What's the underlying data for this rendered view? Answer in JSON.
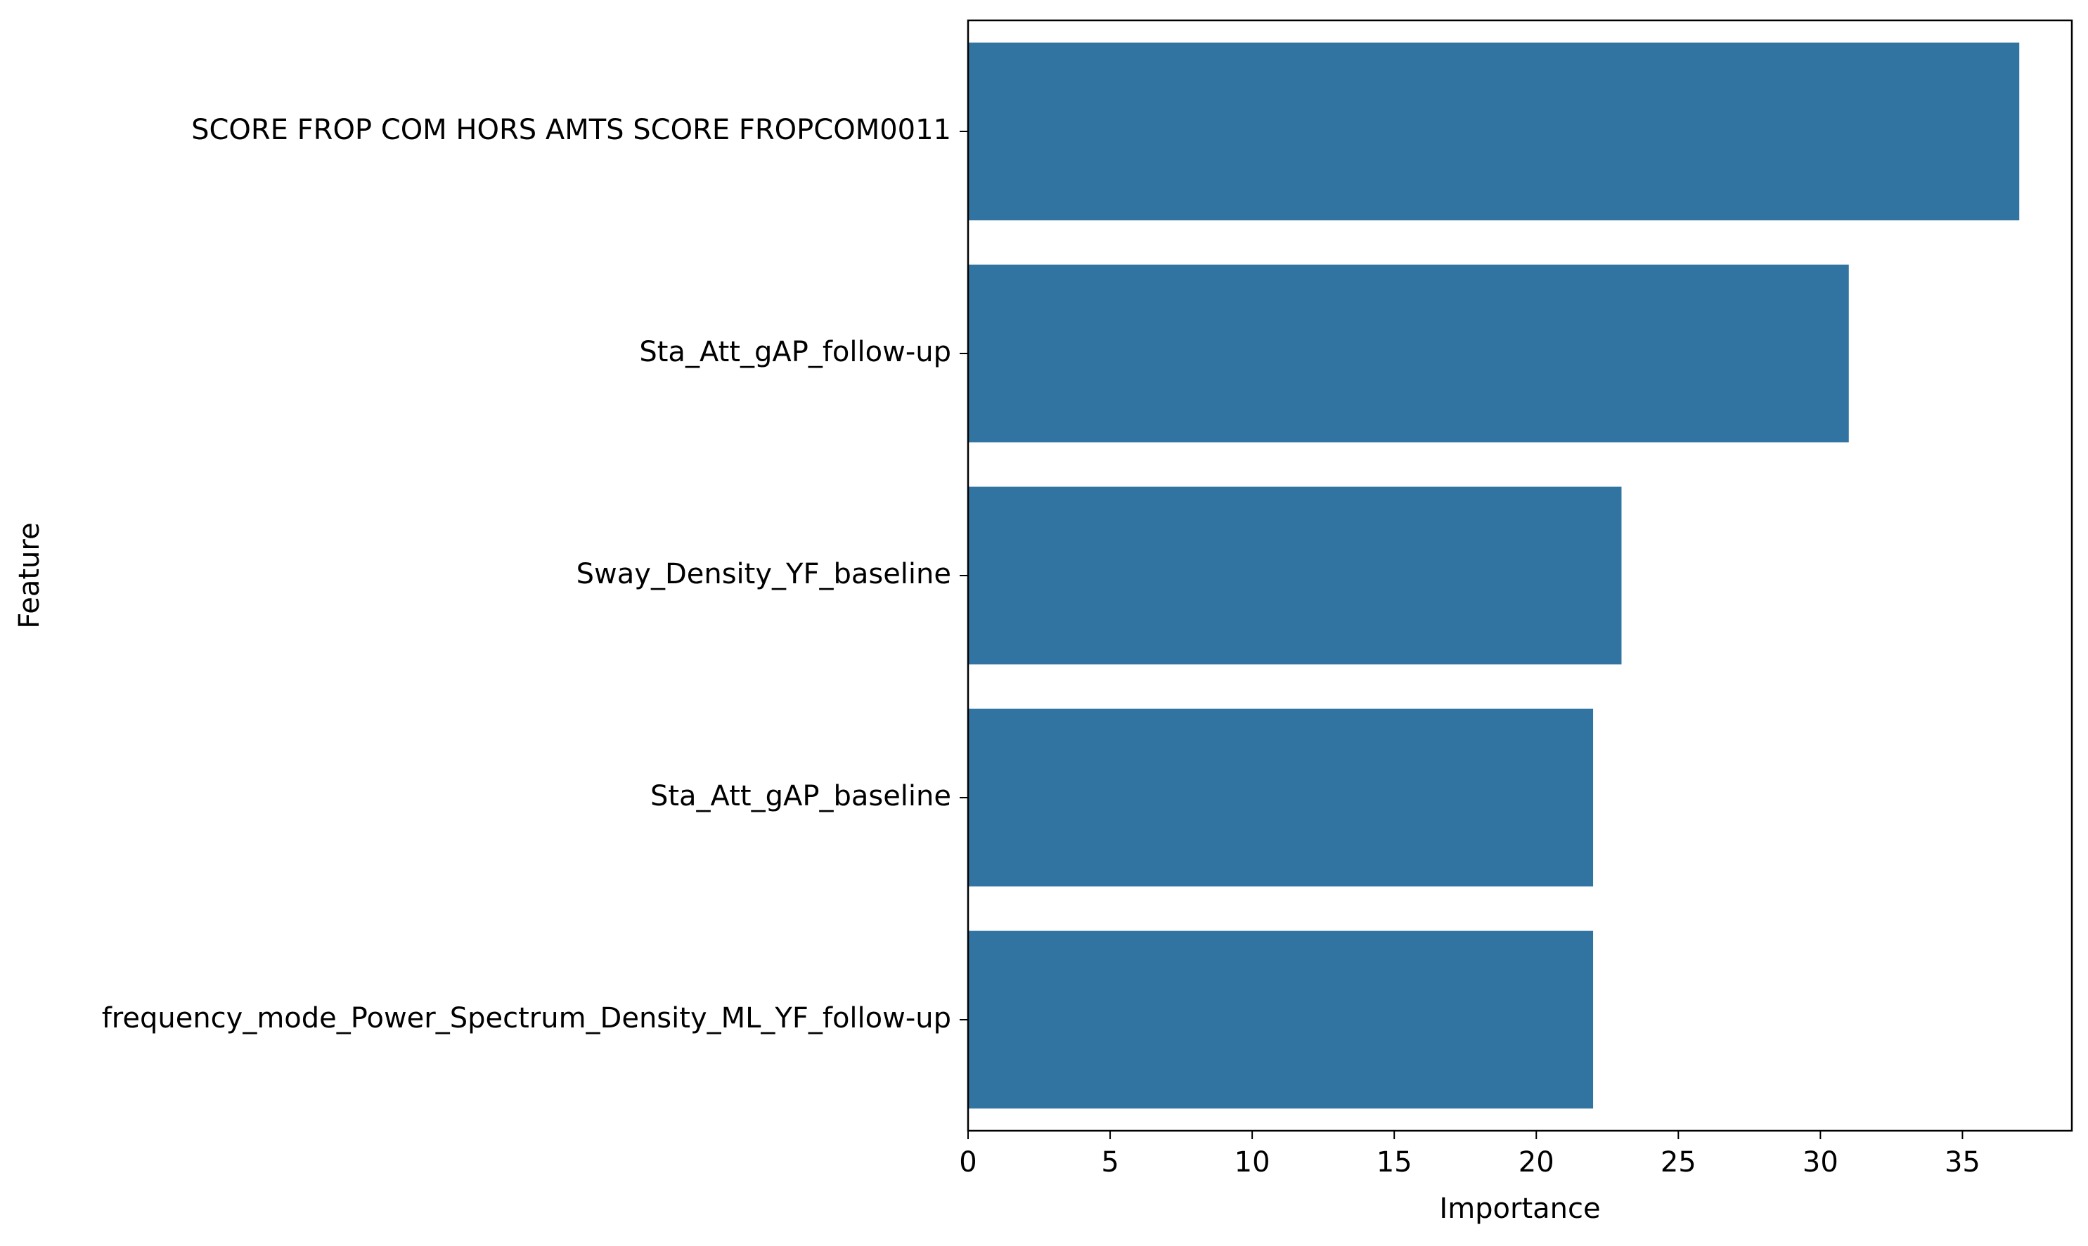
{
  "chart_data": {
    "type": "bar",
    "orientation": "horizontal",
    "title": "",
    "xlabel": "Importance",
    "ylabel": "Feature",
    "categories": [
      "SCORE FROP COM HORS AMTS SCORE FROPCOM0011",
      "Sta_Att_gAP_follow-up",
      "Sway_Density_YF_baseline",
      "Sta_Att_gAP_baseline",
      "frequency_mode_Power_Spectrum_Density_ML_YF_follow-up"
    ],
    "values": [
      37,
      31,
      23,
      22,
      22
    ],
    "xlim": [
      0,
      38.85
    ],
    "xticks": [
      0,
      5,
      10,
      15,
      20,
      25,
      30,
      35
    ],
    "grid": false,
    "legend": "none",
    "bar_color": "#3274a1"
  }
}
